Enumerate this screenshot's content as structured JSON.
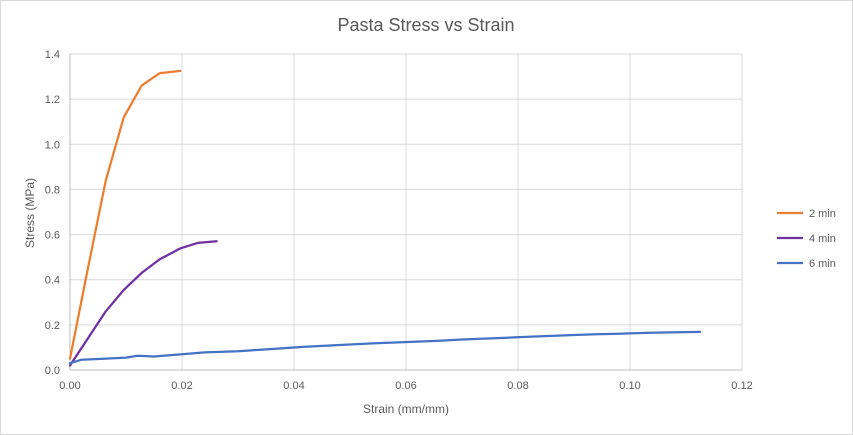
{
  "chart_data": {
    "type": "line",
    "title": "Pasta Stress vs Strain",
    "xlabel": "Strain (mm/mm)",
    "ylabel": "Stress (MPa)",
    "xlim": [
      0,
      0.12
    ],
    "ylim": [
      0,
      1.4
    ],
    "x_ticks": [
      "0.00",
      "0.02",
      "0.04",
      "0.06",
      "0.08",
      "0.10",
      "0.12"
    ],
    "y_ticks": [
      "0.0",
      "0.2",
      "0.4",
      "0.6",
      "0.8",
      "1.0",
      "1.2",
      "1.4"
    ],
    "grid": true,
    "legend_position": "right",
    "series": [
      {
        "name": "2 min",
        "color": "#ED7D31",
        "points": [
          [
            0.0,
            0.05
          ],
          [
            0.0032,
            0.45
          ],
          [
            0.0064,
            0.84
          ],
          [
            0.0096,
            1.12
          ],
          [
            0.0128,
            1.26
          ],
          [
            0.016,
            1.315
          ],
          [
            0.0197,
            1.325
          ]
        ]
      },
      {
        "name": "4 min",
        "color": "#7030A0",
        "points": [
          [
            0.0,
            0.02
          ],
          [
            0.0032,
            0.14
          ],
          [
            0.0064,
            0.26
          ],
          [
            0.0096,
            0.355
          ],
          [
            0.0128,
            0.43
          ],
          [
            0.016,
            0.49
          ],
          [
            0.0196,
            0.538
          ],
          [
            0.0228,
            0.563
          ],
          [
            0.0262,
            0.57
          ]
        ]
      },
      {
        "name": "6 min",
        "color": "#4472C4",
        "points": [
          [
            0.0,
            0.03
          ],
          [
            0.002,
            0.045
          ],
          [
            0.006,
            0.05
          ],
          [
            0.01,
            0.055
          ],
          [
            0.012,
            0.063
          ],
          [
            0.015,
            0.06
          ],
          [
            0.02,
            0.07
          ],
          [
            0.024,
            0.078
          ],
          [
            0.03,
            0.083
          ],
          [
            0.034,
            0.09
          ],
          [
            0.038,
            0.096
          ],
          [
            0.042,
            0.103
          ],
          [
            0.046,
            0.108
          ],
          [
            0.05,
            0.113
          ],
          [
            0.054,
            0.118
          ],
          [
            0.058,
            0.122
          ],
          [
            0.062,
            0.126
          ],
          [
            0.066,
            0.13
          ],
          [
            0.07,
            0.135
          ],
          [
            0.074,
            0.139
          ],
          [
            0.078,
            0.143
          ],
          [
            0.082,
            0.147
          ],
          [
            0.086,
            0.151
          ],
          [
            0.09,
            0.155
          ],
          [
            0.094,
            0.158
          ],
          [
            0.098,
            0.161
          ],
          [
            0.102,
            0.164
          ],
          [
            0.106,
            0.166
          ],
          [
            0.11,
            0.168
          ],
          [
            0.1125,
            0.169
          ]
        ]
      }
    ]
  }
}
